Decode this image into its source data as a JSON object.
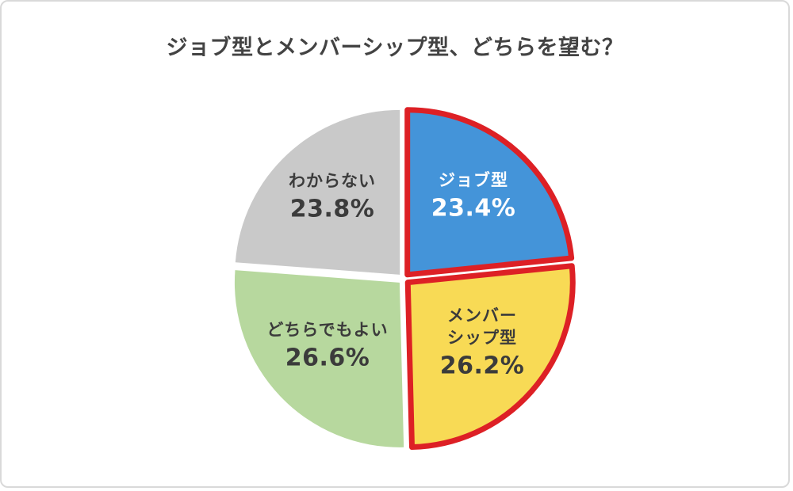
{
  "title": "ジョブ型とメンバーシップ型、どちらを望む？",
  "chart_data": {
    "type": "pie",
    "title": "ジョブ型とメンバーシップ型、どちらを望む？",
    "start_angle_deg": -90,
    "direction": "clockwise",
    "total": 100,
    "legend": "none",
    "labels_on_slices": true,
    "highlight_color": "#dd2025",
    "slices": [
      {
        "label": "ジョブ型",
        "label_lines": [
          "ジョブ型"
        ],
        "value": 23.4,
        "pct_text": "23.4%",
        "color": "#4494d9",
        "text_color": "#ffffff",
        "highlighted": true
      },
      {
        "label": "メンバーシップ型",
        "label_lines": [
          "メンバー",
          "シップ型"
        ],
        "value": 26.2,
        "pct_text": "26.2%",
        "color": "#f8da55",
        "text_color": "#3b3b3b",
        "highlighted": true
      },
      {
        "label": "どちらでもよい",
        "label_lines": [
          "どちらでもよい"
        ],
        "value": 26.6,
        "pct_text": "26.6%",
        "color": "#b7d89e",
        "text_color": "#3b3b3b",
        "highlighted": false
      },
      {
        "label": "わからない",
        "label_lines": [
          "わからない"
        ],
        "value": 23.8,
        "pct_text": "23.8%",
        "color": "#c9c9c9",
        "text_color": "#3b3b3b",
        "highlighted": false
      }
    ]
  }
}
